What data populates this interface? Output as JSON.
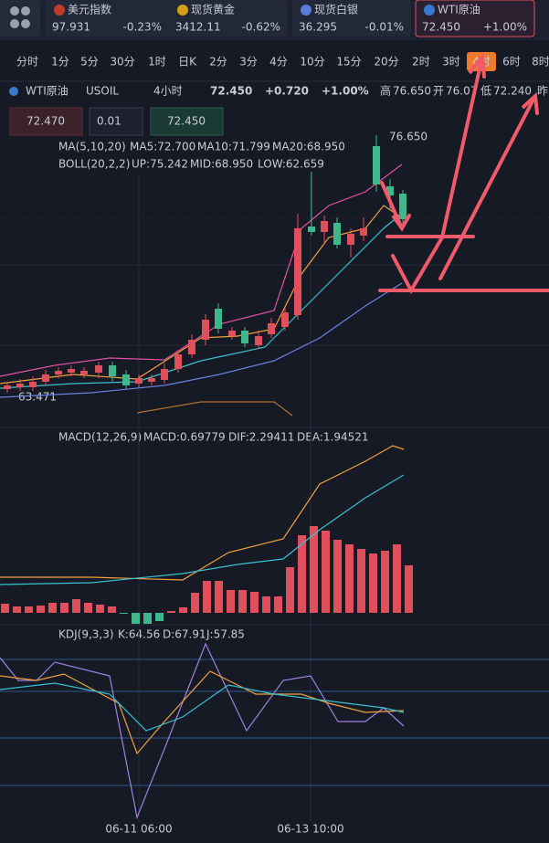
{
  "tickers": [
    {
      "name": "美元指数",
      "price": "97.931",
      "change": "-0.23%"
    },
    {
      "name": "现货黄金",
      "price": "3412.11",
      "change": "-0.62%"
    },
    {
      "name": "现货白银",
      "price": "36.295",
      "change": "-0.01%"
    },
    {
      "name": "WTI原油",
      "price": "72.450",
      "change": "+1.00%"
    }
  ],
  "timeframes": [
    "分时",
    "1分",
    "5分",
    "30分",
    "1时",
    "日K",
    "2分",
    "3分",
    "4分",
    "10分",
    "15分",
    "20分",
    "2时",
    "3时",
    "4时",
    "6时",
    "8时"
  ],
  "active_timeframe": 14,
  "header": {
    "symbol": "WTI原油",
    "code": "USOIL",
    "period": "4小时",
    "price": "72.450",
    "change": "+0.720",
    "percent": "+1.00%",
    "high_label": "高",
    "high": "76.650",
    "open_label": "开",
    "open": "76.07",
    "low_label": "低",
    "low": "72.240",
    "prev_label": "昨"
  },
  "order": {
    "sell": "72.470",
    "quantity": "0.01",
    "buy": "72.450"
  },
  "ma": {
    "label": "MA(5,10,20)",
    "ma5": "MA5:72.700",
    "ma10": "MA10:71.799",
    "ma20": "MA20:68.950"
  },
  "boll": {
    "label": "BOLL(20,2,2)",
    "up": "UP:75.242",
    "mid": "MID:68.950",
    "low": "LOW:62.659"
  },
  "price_marks": {
    "high": "76.650",
    "low": "63.471"
  },
  "macd": {
    "label": "MACD(12,26,9)",
    "macd": "MACD:0.69779",
    "dif": "DIF:2.29411",
    "dea": "DEA:1.94521"
  },
  "kdj": {
    "label": "KDJ(9,3,3)",
    "k": "K:64.56",
    "d": "D:67.91",
    "j": "J:57.85"
  },
  "dates": [
    "06-11 06:00",
    "06-13 10:00"
  ]
}
